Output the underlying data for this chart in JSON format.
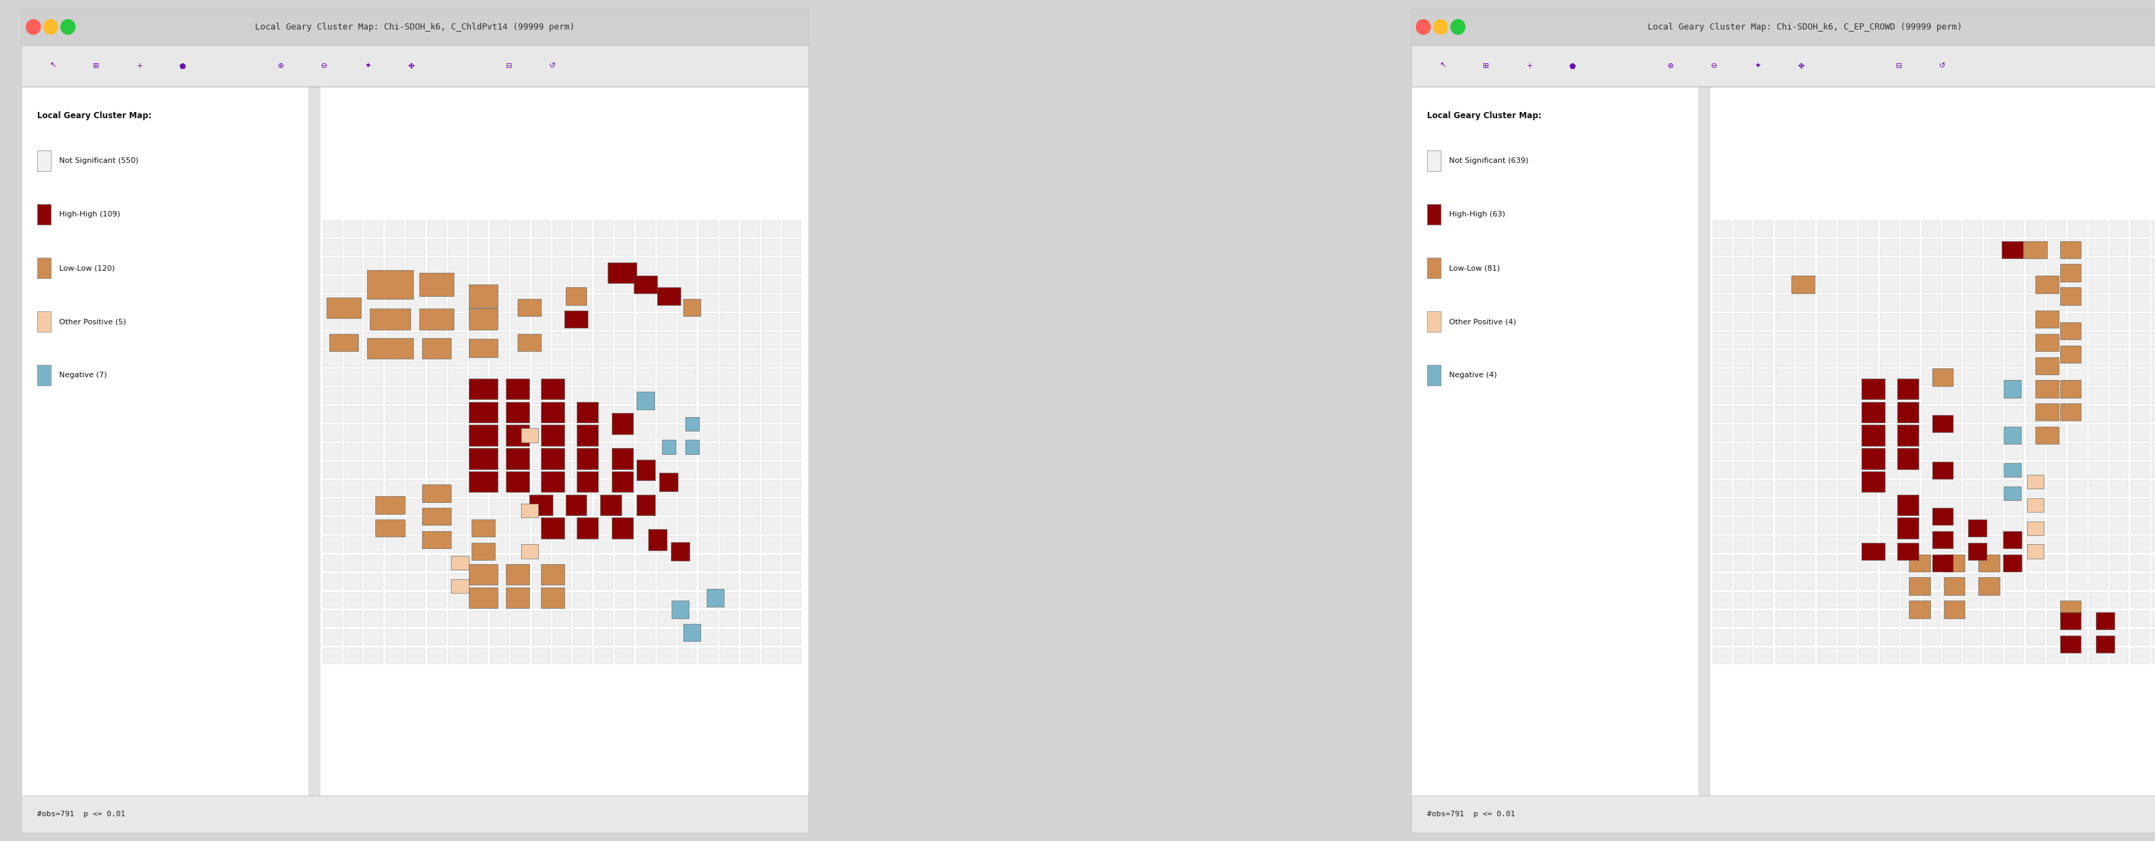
{
  "title1": "Local Geary Cluster Map: Chi-SDOH_k6, C_ChldPvt14 (99999 perm)",
  "title2": "Local Geary Cluster Map: Chi-SDOH_k6, C_EP_CROWD (99999 perm)",
  "legend_title": "Local Geary Cluster Map:",
  "panel1_legend": [
    {
      "label": "Not Significant (550)",
      "color": "#f0f0f0"
    },
    {
      "label": "High-High (109)",
      "color": "#8b0000"
    },
    {
      "label": "Low-Low (120)",
      "color": "#cd8c52"
    },
    {
      "label": "Other Positive (5)",
      "color": "#f5cba7"
    },
    {
      "label": "Negative (7)",
      "color": "#7ab3c8"
    }
  ],
  "panel2_legend": [
    {
      "label": "Not Significant (639)",
      "color": "#f0f0f0"
    },
    {
      "label": "High-High (63)",
      "color": "#8b0000"
    },
    {
      "label": "Low-Low (81)",
      "color": "#cd8c52"
    },
    {
      "label": "Other Positive (4)",
      "color": "#f5cba7"
    },
    {
      "label": "Negative (4)",
      "color": "#7ab3c8"
    }
  ],
  "status_bar": "#obs=791  p <= 0.01",
  "bg_color": "#d4d4d4",
  "window_bg": "#f5f5f5",
  "toolbar_bg": "#e8e8e8",
  "titlebar_bg": "#d0d0d0",
  "map_bg": "#ffffff",
  "separator_color": "#c0c0c0",
  "fig_width": 31.35,
  "fig_height": 12.24
}
